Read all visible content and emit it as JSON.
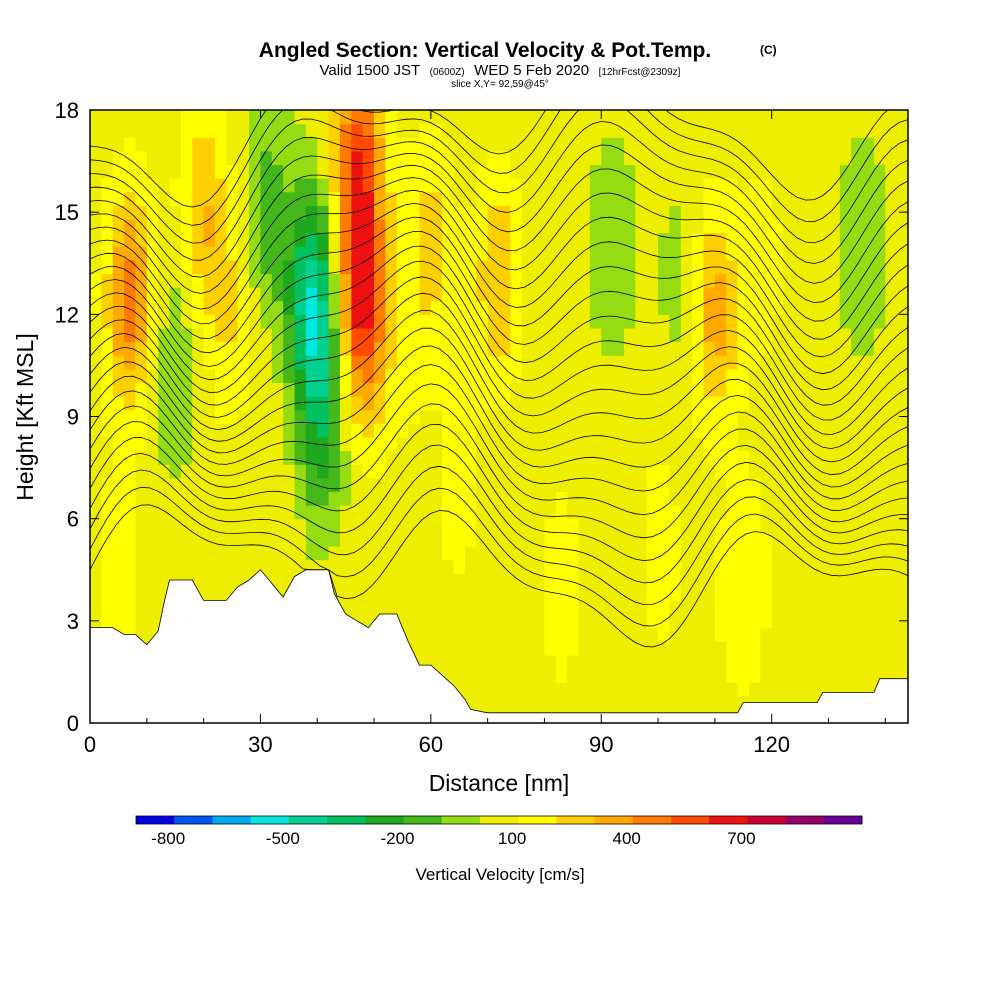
{
  "header": {
    "title": "Angled Section: Vertical Velocity & Pot.Temp.",
    "title_tag": "(C)",
    "valid_prefix": "Valid 1500 JST",
    "valid_zulu": "(0600Z)",
    "valid_date": "WED 5 Feb 2020",
    "forecast": "[12hrFcst@2309z]",
    "slice": "slice X,Y= 92,59@45°"
  },
  "chart_data": {
    "type": "heatmap",
    "xlabel": "Distance [nm]",
    "ylabel": "Height [Kft MSL]",
    "xlim": [
      0,
      144
    ],
    "ylim": [
      0,
      18
    ],
    "xticks": [
      0,
      30,
      60,
      90,
      120
    ],
    "xtick_labels": [
      "0",
      "30",
      "60",
      "90",
      "120"
    ],
    "yticks": [
      0,
      3,
      6,
      9,
      12,
      15,
      18
    ],
    "ytick_labels": [
      "0",
      "3",
      "6",
      "9",
      "12",
      "15",
      "18"
    ],
    "colorbar": {
      "title": "Vertical Velocity [cm/s]",
      "levels": [
        -900,
        -800,
        -700,
        -600,
        -500,
        -400,
        -300,
        -200,
        -100,
        0,
        100,
        200,
        300,
        400,
        500,
        600,
        700,
        800,
        900
      ],
      "colors": [
        "#0000e6",
        "#0055ee",
        "#00aaee",
        "#00e8e0",
        "#00d090",
        "#00c060",
        "#1ea81e",
        "#44b81a",
        "#96dc12",
        "#eeee00",
        "#ffff00",
        "#ffd000",
        "#ffaa00",
        "#ff7a00",
        "#ff4a00",
        "#ee1111",
        "#cc0033",
        "#990066",
        "#660099"
      ],
      "tick_values": [
        -800,
        -500,
        -200,
        100,
        400,
        700
      ],
      "tick_labels": [
        "-800",
        "-500",
        "-200",
        "100",
        "400",
        "700"
      ]
    },
    "velocity_features": [
      {
        "x": 7,
        "y": 12.5,
        "w_cm_s": 400
      },
      {
        "x": 15,
        "y": 10.5,
        "w_cm_s": -150
      },
      {
        "x": 20,
        "y": 15.0,
        "w_cm_s": 250
      },
      {
        "x": 25,
        "y": 12.0,
        "w_cm_s": 150
      },
      {
        "x": 31,
        "y": 15.0,
        "w_cm_s": -200
      },
      {
        "x": 39,
        "y": 12.5,
        "w_cm_s": -500
      },
      {
        "x": 41,
        "y": 9.0,
        "w_cm_s": -300
      },
      {
        "x": 48,
        "y": 12.0,
        "w_cm_s": 550
      },
      {
        "x": 47,
        "y": 16.5,
        "w_cm_s": 500
      },
      {
        "x": 52,
        "y": 15.0,
        "w_cm_s": 50
      },
      {
        "x": 60,
        "y": 14.0,
        "w_cm_s": 200
      },
      {
        "x": 72,
        "y": 13.0,
        "w_cm_s": 250
      },
      {
        "x": 80,
        "y": 14.0,
        "w_cm_s": -50
      },
      {
        "x": 92,
        "y": 14.0,
        "w_cm_s": -150
      },
      {
        "x": 104,
        "y": 13.0,
        "w_cm_s": -100
      },
      {
        "x": 110,
        "y": 12.0,
        "w_cm_s": 300
      },
      {
        "x": 119,
        "y": 13.5,
        "w_cm_s": 100
      },
      {
        "x": 125,
        "y": 14.0,
        "w_cm_s": -50
      },
      {
        "x": 136,
        "y": 14.0,
        "w_cm_s": -150
      },
      {
        "x": 55,
        "y": 10.0,
        "w_cm_s": 50
      },
      {
        "x": 65,
        "y": 7.0,
        "w_cm_s": 100
      },
      {
        "x": 73,
        "y": 5.5,
        "w_cm_s": -50
      },
      {
        "x": 83,
        "y": 4.0,
        "w_cm_s": 100
      },
      {
        "x": 93,
        "y": 3.0,
        "w_cm_s": -50
      },
      {
        "x": 100,
        "y": 5.0,
        "w_cm_s": 100
      },
      {
        "x": 115,
        "y": 4.0,
        "w_cm_s": 150
      },
      {
        "x": 130,
        "y": 3.0,
        "w_cm_s": -50
      },
      {
        "x": 5,
        "y": 4.5,
        "w_cm_s": 100
      }
    ],
    "terrain_kft": [
      [
        0,
        2.8
      ],
      [
        2,
        2.8
      ],
      [
        4,
        2.8
      ],
      [
        6,
        2.6
      ],
      [
        8,
        2.6
      ],
      [
        10,
        2.3
      ],
      [
        12,
        2.7
      ],
      [
        13,
        3.5
      ],
      [
        14,
        4.2
      ],
      [
        18,
        4.2
      ],
      [
        20,
        3.6
      ],
      [
        24,
        3.6
      ],
      [
        26,
        4.0
      ],
      [
        28,
        4.2
      ],
      [
        30,
        4.5
      ],
      [
        32,
        4.1
      ],
      [
        34,
        3.7
      ],
      [
        36,
        4.3
      ],
      [
        38,
        4.5
      ],
      [
        42,
        4.5
      ],
      [
        43,
        3.8
      ],
      [
        45,
        3.2
      ],
      [
        47,
        3.0
      ],
      [
        49,
        2.8
      ],
      [
        51,
        3.2
      ],
      [
        54,
        3.2
      ],
      [
        56,
        2.4
      ],
      [
        58,
        1.7
      ],
      [
        60,
        1.7
      ],
      [
        62,
        1.4
      ],
      [
        64,
        1.1
      ],
      [
        66,
        0.7
      ],
      [
        67,
        0.4
      ],
      [
        70,
        0.3
      ],
      [
        90,
        0.3
      ],
      [
        114,
        0.3
      ],
      [
        115,
        0.6
      ],
      [
        128,
        0.6
      ],
      [
        129,
        0.9
      ],
      [
        138,
        0.9
      ],
      [
        139,
        1.3
      ],
      [
        144,
        1.3
      ]
    ],
    "theta_contours": {
      "base_c": 10,
      "interval_c": 1,
      "count": 26
    }
  }
}
